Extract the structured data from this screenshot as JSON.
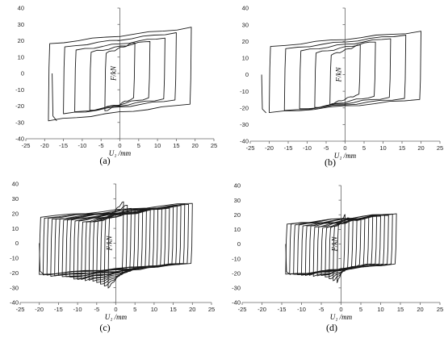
{
  "chart_data": [
    {
      "type": "line",
      "label": "(a)",
      "xlabel": "U₁ /mm",
      "ylabel": "F/kN",
      "xlim": [
        -25,
        25
      ],
      "ylim": [
        -40,
        40
      ],
      "xticks": [
        -25,
        -20,
        -15,
        -10,
        -5,
        0,
        5,
        10,
        15,
        20,
        25
      ],
      "yticks": [
        -40,
        -30,
        -20,
        -10,
        0,
        10,
        20,
        30,
        40
      ],
      "grid": false,
      "series": [
        {
          "values": {
            "loops": [
              {
                "amplitude": 4,
                "fmax": 19,
                "fmin": -23
              },
              {
                "amplitude": 8,
                "fmax": 20,
                "fmin": -23
              },
              {
                "amplitude": 12,
                "fmax": 22,
                "fmin": -24
              },
              {
                "amplitude": 15,
                "fmax": 25,
                "fmin": -25
              },
              {
                "amplitude": 19,
                "fmax": 28,
                "fmin": -29
              }
            ],
            "start": {
              "x": -18,
              "y": 0
            }
          }
        }
      ]
    },
    {
      "type": "line",
      "label": "(b)",
      "xlabel": "U₁ /mm",
      "ylabel": "F/kN",
      "xlim": [
        -25,
        25
      ],
      "ylim": [
        -40,
        40
      ],
      "xticks": [
        -25,
        -20,
        -15,
        -10,
        -5,
        0,
        5,
        10,
        15,
        20,
        25
      ],
      "yticks": [
        -40,
        -30,
        -20,
        -10,
        0,
        10,
        20,
        30,
        40
      ],
      "grid": false,
      "series": [
        {
          "values": {
            "loops": [
              {
                "amplitude": 4,
                "fmax": 18,
                "fmin": -18
              },
              {
                "amplitude": 8,
                "fmax": 20,
                "fmin": -20
              },
              {
                "amplitude": 12,
                "fmax": 22,
                "fmin": -21
              },
              {
                "amplitude": 16,
                "fmax": 24,
                "fmin": -22
              },
              {
                "amplitude": 20,
                "fmax": 26,
                "fmin": -23
              }
            ],
            "start": {
              "x": -22,
              "y": 0
            }
          }
        }
      ]
    },
    {
      "type": "line",
      "label": "(c)",
      "xlabel": "U₁ /mm",
      "ylabel": "F/kN",
      "xlim": [
        -25,
        25
      ],
      "ylim": [
        -40,
        40
      ],
      "xticks": [
        -25,
        -20,
        -15,
        -10,
        -5,
        0,
        5,
        10,
        15,
        20,
        25
      ],
      "yticks": [
        -40,
        -30,
        -20,
        -10,
        0,
        10,
        20,
        30,
        40
      ],
      "grid": false,
      "series": [
        {
          "values": {
            "loops": [
              {
                "amplitude": 2,
                "fmax": 28,
                "fmin": -30
              },
              {
                "amplitude": 3,
                "fmax": 26,
                "fmin": -29
              },
              {
                "amplitude": 4,
                "fmax": 24,
                "fmin": -28
              },
              {
                "amplitude": 5,
                "fmax": 23,
                "fmin": -27
              },
              {
                "amplitude": 6,
                "fmax": 22,
                "fmin": -26
              },
              {
                "amplitude": 7,
                "fmax": 22,
                "fmin": -25
              },
              {
                "amplitude": 8,
                "fmax": 22,
                "fmin": -25
              },
              {
                "amplitude": 9,
                "fmax": 22,
                "fmin": -24
              },
              {
                "amplitude": 10,
                "fmax": 23,
                "fmin": -24
              },
              {
                "amplitude": 11,
                "fmax": 23,
                "fmin": -24
              },
              {
                "amplitude": 12,
                "fmax": 24,
                "fmin": -23
              },
              {
                "amplitude": 13,
                "fmax": 24,
                "fmin": -23
              },
              {
                "amplitude": 14,
                "fmax": 24,
                "fmin": -23
              },
              {
                "amplitude": 15,
                "fmax": 25,
                "fmin": -22
              },
              {
                "amplitude": 16,
                "fmax": 25,
                "fmin": -22
              },
              {
                "amplitude": 17,
                "fmax": 25,
                "fmin": -22
              },
              {
                "amplitude": 18,
                "fmax": 26,
                "fmin": -21
              },
              {
                "amplitude": 19,
                "fmax": 26,
                "fmin": -21
              },
              {
                "amplitude": 20,
                "fmax": 27,
                "fmin": -21
              }
            ],
            "start": {
              "x": -20,
              "y": 0
            }
          }
        }
      ]
    },
    {
      "type": "line",
      "label": "(d)",
      "xlabel": "U₁ /mm",
      "ylabel": "F/kN",
      "xlim": [
        -25,
        25
      ],
      "ylim": [
        -40,
        40
      ],
      "xticks": [
        -25,
        -20,
        -15,
        -10,
        -5,
        0,
        5,
        10,
        15,
        20,
        25
      ],
      "yticks": [
        -40,
        -30,
        -20,
        -10,
        0,
        10,
        20,
        30,
        40
      ],
      "grid": false,
      "series": [
        {
          "values": {
            "loops": [
              {
                "amplitude": 1,
                "fmax": 20,
                "fmin": -26
              },
              {
                "amplitude": 2,
                "fmax": 18,
                "fmin": -25
              },
              {
                "amplitude": 3,
                "fmax": 17,
                "fmin": -24
              },
              {
                "amplitude": 4,
                "fmax": 17,
                "fmin": -23
              },
              {
                "amplitude": 5,
                "fmax": 17,
                "fmin": -22
              },
              {
                "amplitude": 6,
                "fmax": 18,
                "fmin": -22
              },
              {
                "amplitude": 7,
                "fmax": 18,
                "fmin": -22
              },
              {
                "amplitude": 8,
                "fmax": 19,
                "fmin": -21
              },
              {
                "amplitude": 9,
                "fmax": 19,
                "fmin": -21
              },
              {
                "amplitude": 10,
                "fmax": 19,
                "fmin": -21
              },
              {
                "amplitude": 11,
                "fmax": 20,
                "fmin": -21
              },
              {
                "amplitude": 12,
                "fmax": 20,
                "fmin": -21
              },
              {
                "amplitude": 13,
                "fmax": 21,
                "fmin": -21
              },
              {
                "amplitude": 14,
                "fmax": 21,
                "fmin": -21
              }
            ],
            "start": {
              "x": -14,
              "y": 0
            }
          }
        }
      ]
    }
  ]
}
